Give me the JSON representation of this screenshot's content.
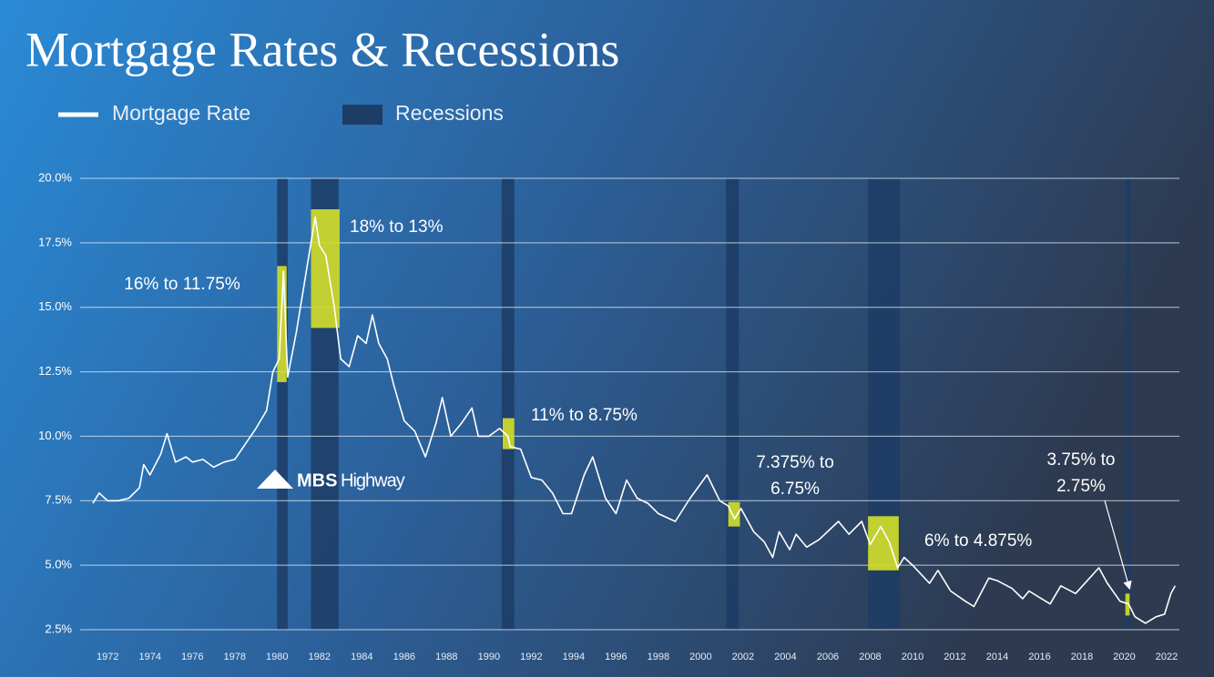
{
  "chart_data": {
    "type": "line",
    "title": "Mortgage Rates & Recessions",
    "recession_label": "Recessions",
    "xlim": [
      1970.7,
      2022.6
    ],
    "ylim": [
      2.5,
      20
    ],
    "yticks": [
      {
        "value": 2.5,
        "label": "2.5%"
      },
      {
        "value": 5,
        "label": "5.0%"
      },
      {
        "value": 7.5,
        "label": "7.5%"
      },
      {
        "value": 10,
        "label": "10.0%"
      },
      {
        "value": 12.5,
        "label": "12.5%"
      },
      {
        "value": 15,
        "label": "15.0%"
      },
      {
        "value": 17.5,
        "label": "17.5%"
      },
      {
        "value": 20,
        "label": "20.0%"
      }
    ],
    "xticks": [
      1972,
      1974,
      1976,
      1978,
      1980,
      1982,
      1984,
      1986,
      1988,
      1990,
      1992,
      1994,
      1996,
      1998,
      2000,
      2002,
      2004,
      2006,
      2008,
      2010,
      2012,
      2014,
      2016,
      2018,
      2020,
      2022
    ],
    "grid": true,
    "recession_color": "#1d3c66",
    "recessions": [
      [
        1980.0,
        1980.5
      ],
      [
        1981.6,
        1982.9
      ],
      [
        1990.6,
        1991.2
      ],
      [
        2001.2,
        2001.8
      ],
      [
        2007.9,
        2009.4
      ],
      [
        2020.1,
        2020.3
      ]
    ],
    "highlight_color": "#d4e02a",
    "highlights": [
      {
        "x": [
          1980.0,
          1980.45
        ],
        "y": [
          12.1,
          16.6
        ]
      },
      {
        "x": [
          1981.6,
          1982.95
        ],
        "y": [
          14.2,
          18.8
        ]
      },
      {
        "x": [
          1990.65,
          1991.2
        ],
        "y": [
          9.5,
          10.7
        ]
      },
      {
        "x": [
          2001.3,
          2001.85
        ],
        "y": [
          6.5,
          7.45
        ]
      },
      {
        "x": [
          2007.9,
          2009.35
        ],
        "y": [
          4.8,
          6.9
        ]
      },
      {
        "x": [
          2020.05,
          2020.25
        ],
        "y": [
          3.05,
          3.9
        ]
      }
    ],
    "annotations": [
      [
        "16% to 11.75%"
      ],
      [
        "18% to 13%"
      ],
      [
        "11% to 8.75%"
      ],
      [
        "7.375% to",
        "6.75%"
      ],
      [
        "6% to 4.875%"
      ],
      [
        "3.75% to",
        "2.75%"
      ]
    ],
    "x": [
      1971.3,
      1971.6,
      1972.0,
      1972.5,
      1973.0,
      1973.5,
      1973.7,
      1974.0,
      1974.5,
      1974.8,
      1975.2,
      1975.7,
      1976.0,
      1976.5,
      1977.0,
      1977.5,
      1978.0,
      1978.5,
      1979.0,
      1979.5,
      1979.8,
      1980.1,
      1980.3,
      1980.5,
      1980.9,
      1981.3,
      1981.8,
      1982.0,
      1982.3,
      1982.7,
      1983.0,
      1983.4,
      1983.8,
      1984.2,
      1984.5,
      1984.8,
      1985.2,
      1985.5,
      1986.0,
      1986.5,
      1987.0,
      1987.5,
      1987.8,
      1988.2,
      1988.7,
      1989.2,
      1989.5,
      1990.0,
      1990.5,
      1990.9,
      1991.0,
      1991.5,
      1992.0,
      1992.5,
      1993.0,
      1993.5,
      1993.9,
      1994.5,
      1994.9,
      1995.5,
      1996.0,
      1996.5,
      1997.0,
      1997.5,
      1998.0,
      1998.8,
      1999.5,
      2000.3,
      2000.9,
      2001.3,
      2001.6,
      2001.9,
      2002.5,
      2003.0,
      2003.4,
      2003.7,
      2004.2,
      2004.5,
      2005.0,
      2005.6,
      2006.5,
      2007.0,
      2007.6,
      2008.0,
      2008.5,
      2008.9,
      2009.3,
      2009.6,
      2010.0,
      2010.8,
      2011.2,
      2011.8,
      2012.5,
      2012.9,
      2013.6,
      2014.0,
      2014.7,
      2015.2,
      2015.5,
      2016.5,
      2017.0,
      2017.7,
      2018.8,
      2019.2,
      2019.8,
      2020.2,
      2020.5,
      2021.0,
      2021.5,
      2021.9,
      2022.2,
      2022.4
    ],
    "series": [
      {
        "name": "Mortgage Rate",
        "color": "#ffffff",
        "values": [
          7.4,
          7.8,
          7.5,
          7.5,
          7.6,
          8.0,
          8.9,
          8.5,
          9.3,
          10.1,
          9.0,
          9.2,
          9.0,
          9.1,
          8.8,
          9.0,
          9.1,
          9.7,
          10.3,
          11.0,
          12.5,
          13.0,
          16.4,
          12.3,
          14.0,
          16.0,
          18.5,
          17.4,
          17.0,
          15.0,
          13.0,
          12.7,
          13.9,
          13.6,
          14.7,
          13.6,
          13.0,
          12.0,
          10.6,
          10.2,
          9.2,
          10.5,
          11.5,
          10.0,
          10.5,
          11.1,
          10.0,
          10.0,
          10.3,
          10.0,
          9.6,
          9.5,
          8.4,
          8.3,
          7.8,
          7.0,
          7.0,
          8.5,
          9.2,
          7.6,
          7.0,
          8.3,
          7.6,
          7.4,
          7.0,
          6.7,
          7.6,
          8.5,
          7.5,
          7.3,
          6.8,
          7.2,
          6.3,
          5.9,
          5.3,
          6.3,
          5.6,
          6.2,
          5.7,
          6.0,
          6.7,
          6.2,
          6.7,
          5.8,
          6.5,
          5.9,
          4.9,
          5.3,
          5.0,
          4.3,
          4.8,
          4.0,
          3.6,
          3.4,
          4.5,
          4.4,
          4.1,
          3.7,
          4.0,
          3.5,
          4.2,
          3.9,
          4.9,
          4.3,
          3.6,
          3.5,
          3.0,
          2.75,
          3.0,
          3.1,
          3.9,
          4.2
        ]
      }
    ]
  },
  "logo": {
    "bold": "MBS",
    "light": "Highway"
  }
}
